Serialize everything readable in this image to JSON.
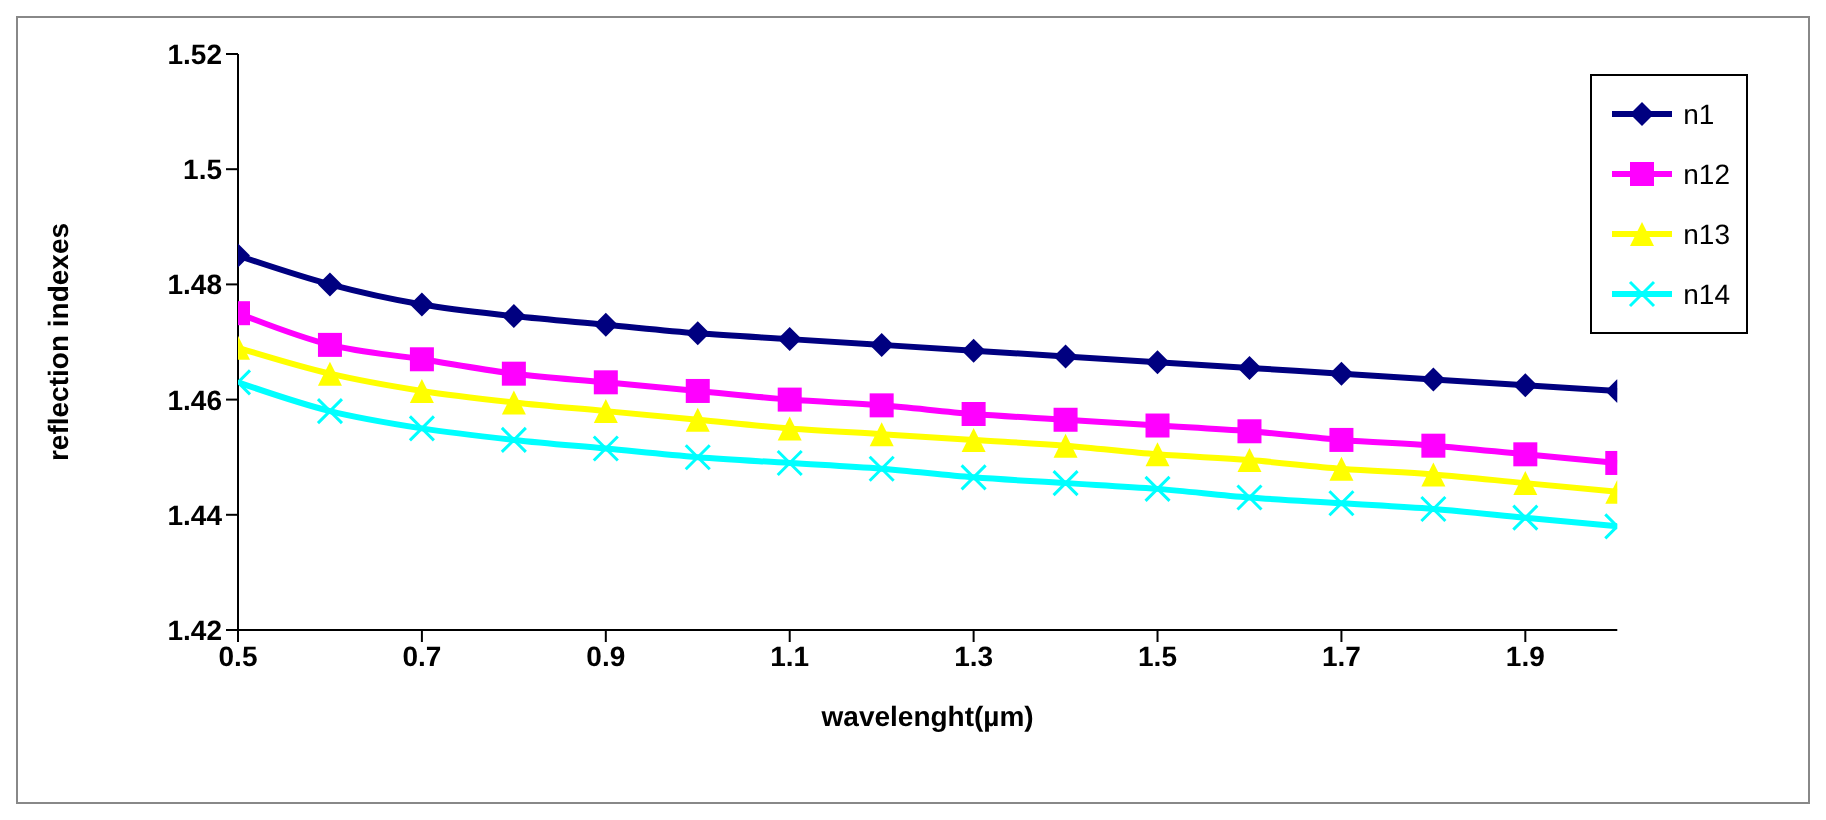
{
  "chart_data": {
    "type": "line",
    "xlabel": "wavelenght(µm)",
    "ylabel": "reflection indexes",
    "x": [
      0.5,
      0.6,
      0.7,
      0.8,
      0.9,
      1.0,
      1.1,
      1.2,
      1.3,
      1.4,
      1.5,
      1.6,
      1.7,
      1.8,
      1.9,
      2.0
    ],
    "series": [
      {
        "name": "n1",
        "color": "#000080",
        "marker": "diamond",
        "values": [
          1.485,
          1.48,
          1.4765,
          1.4745,
          1.473,
          1.4715,
          1.4705,
          1.4695,
          1.4685,
          1.4675,
          1.4665,
          1.4655,
          1.4645,
          1.4635,
          1.4625,
          1.4615
        ]
      },
      {
        "name": "n12",
        "color": "#ff00ff",
        "marker": "square",
        "values": [
          1.475,
          1.4695,
          1.467,
          1.4645,
          1.463,
          1.4615,
          1.46,
          1.459,
          1.4575,
          1.4565,
          1.4555,
          1.4545,
          1.453,
          1.452,
          1.4505,
          1.449
        ]
      },
      {
        "name": "n13",
        "color": "#ffff00",
        "marker": "triangle",
        "values": [
          1.469,
          1.4645,
          1.4615,
          1.4595,
          1.458,
          1.4565,
          1.455,
          1.454,
          1.453,
          1.452,
          1.4505,
          1.4495,
          1.448,
          1.447,
          1.4455,
          1.444
        ]
      },
      {
        "name": "n14",
        "color": "#00ffff",
        "marker": "cross",
        "values": [
          1.463,
          1.458,
          1.455,
          1.453,
          1.4515,
          1.45,
          1.449,
          1.448,
          1.4465,
          1.4455,
          1.4445,
          1.443,
          1.442,
          1.441,
          1.4395,
          1.438
        ]
      }
    ],
    "xlim": [
      0.5,
      2.0
    ],
    "xticks": [
      0.5,
      0.7,
      0.9,
      1.1,
      1.3,
      1.5,
      1.7,
      1.9
    ],
    "ylim": [
      1.42,
      1.52
    ],
    "yticks": [
      1.42,
      1.44,
      1.46,
      1.48,
      1.5,
      1.52
    ],
    "grid": false,
    "legend": "top right",
    "line_style": "solid"
  }
}
